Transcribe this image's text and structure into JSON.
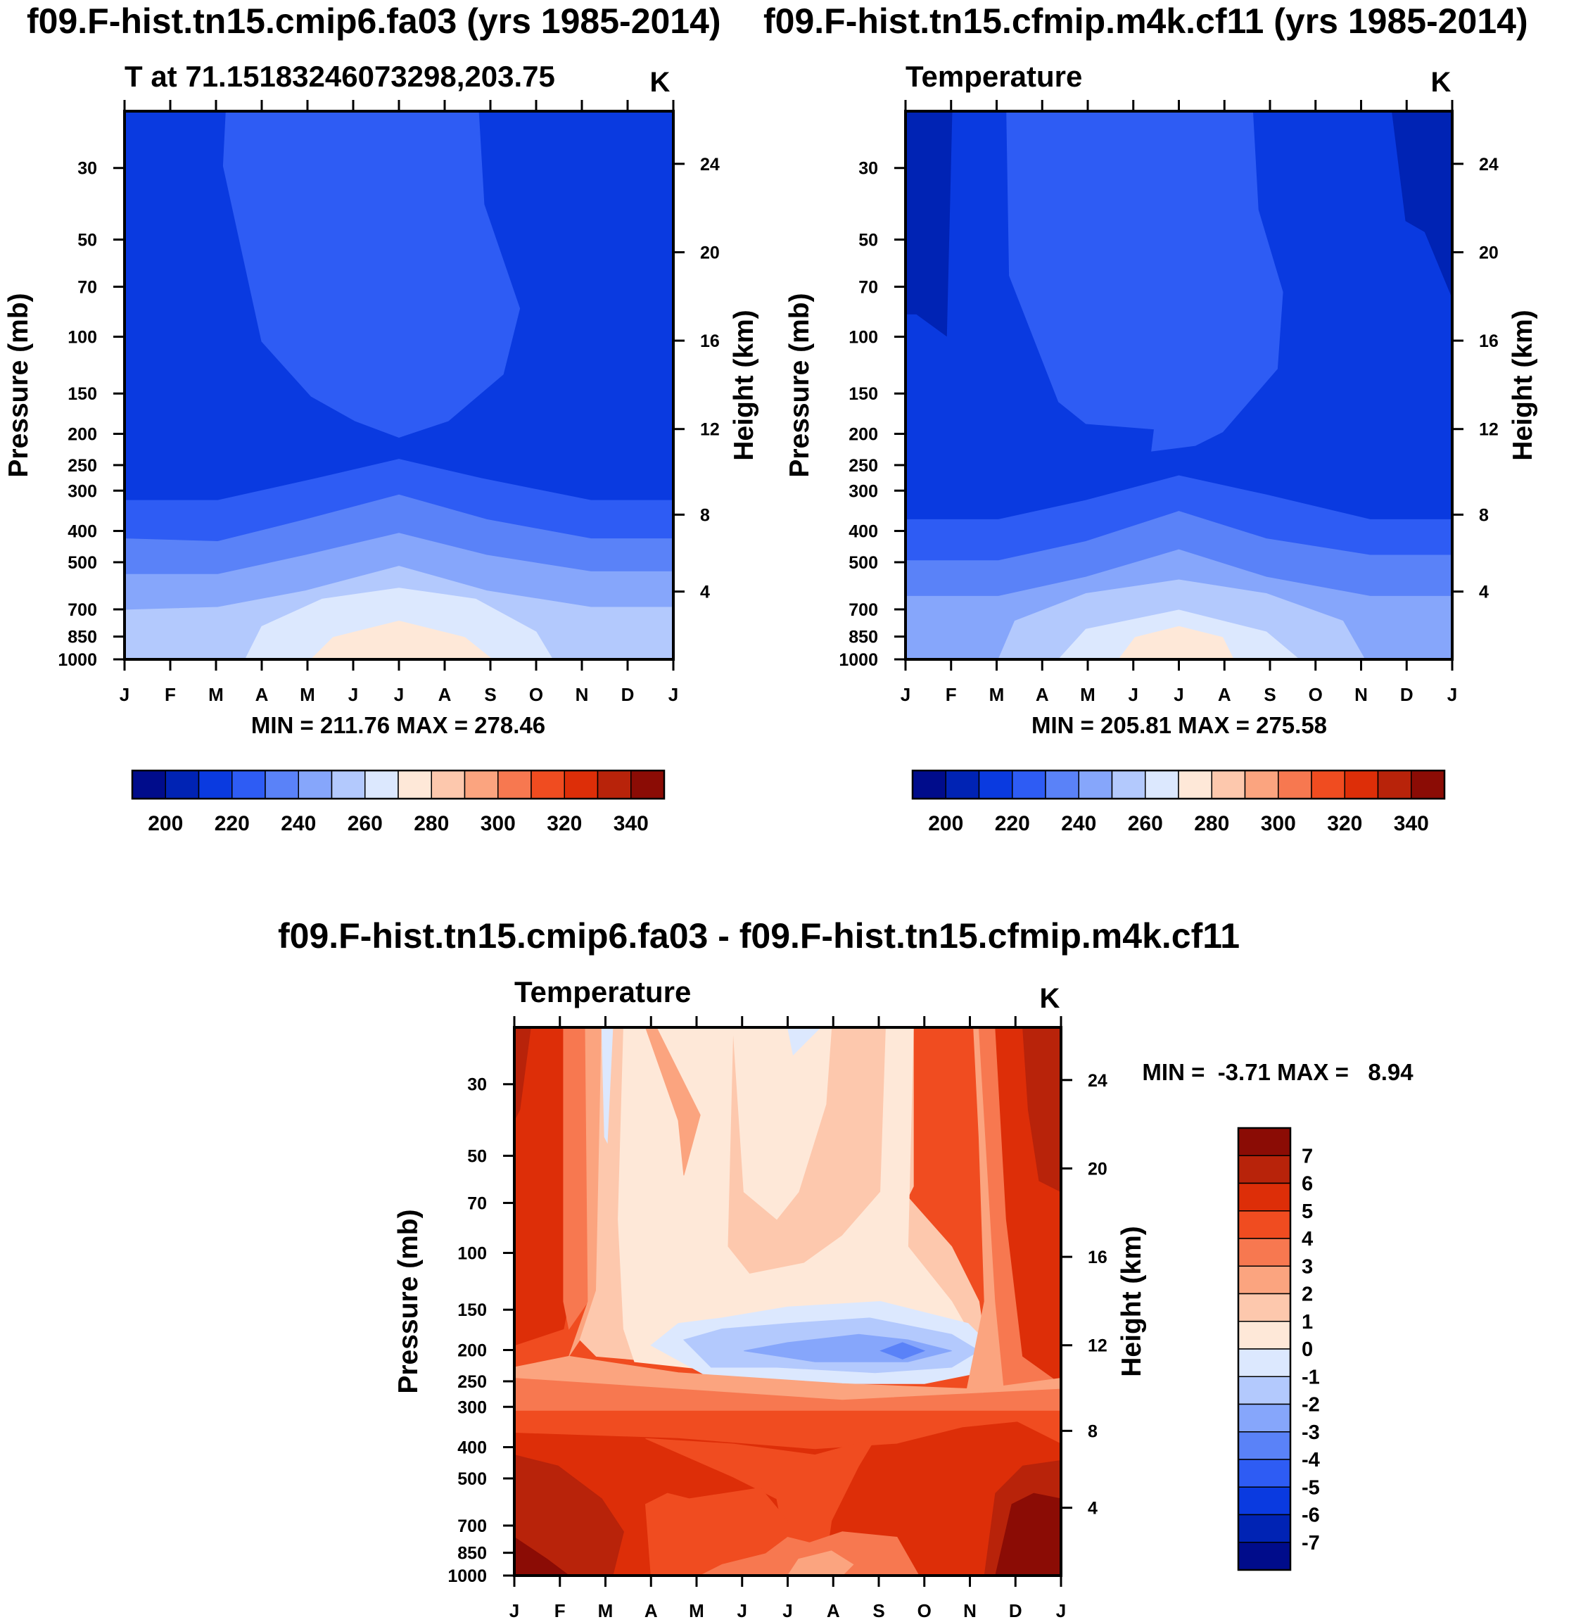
{
  "titles": {
    "left": "f09.F-hist.tn15.cmip6.fa03 (yrs 1985-2014)",
    "right": "f09.F-hist.tn15.cfmip.m4k.cf11 (yrs 1985-2014)",
    "diff": "f09.F-hist.tn15.cmip6.fa03 - f09.F-hist.tn15.cfmip.m4k.cf11"
  },
  "colors": {
    "contour_palette": [
      "#000c8b",
      "#0023b4",
      "#0a3ae0",
      "#2e5cf4",
      "#5a82f8",
      "#86a6fb",
      "#b3c9fd",
      "#dce8fe",
      "#fee8d8",
      "#fdc8ad",
      "#fba47f",
      "#f77850",
      "#f04c20",
      "#dd2e08",
      "#b8230a",
      "#8b0c05"
    ],
    "panel_fills": {
      "left": [
        "#0a3ae0",
        "#2e5cf4",
        "#5a82f8",
        "#86a6fb",
        "#b3c9fd",
        "#dce8fe",
        "#fee8d8"
      ],
      "right": [
        "#0023b4",
        "#0a3ae0",
        "#2e5cf4",
        "#5a82f8",
        "#86a6fb",
        "#b3c9fd",
        "#dce8fe",
        "#fee8d8"
      ],
      "diff": [
        "#dd2e08",
        "#f04c20",
        "#f77850",
        "#fba47f",
        "#fdc8ad",
        "#fee8d8",
        "#dce8fe",
        "#b3c9fd",
        "#86a6fb",
        "#5a82f8",
        "#b8230a",
        "#8b0c05"
      ]
    }
  },
  "chart_data": [
    {
      "id": "left",
      "type": "heatmap",
      "title": "T at 71.15183246073298,203.75",
      "units_label": "K",
      "xlabel": "",
      "ylabel": "Pressure (mb)",
      "y2label": "Height (km)",
      "x_ticks": [
        "J",
        "F",
        "M",
        "A",
        "M",
        "J",
        "J",
        "A",
        "S",
        "O",
        "N",
        "D",
        "J"
      ],
      "y_ticks": [
        30,
        50,
        70,
        100,
        150,
        200,
        250,
        300,
        400,
        500,
        700,
        850,
        1000
      ],
      "y_range": [
        20,
        1000
      ],
      "y_scale": "log-pressure",
      "height_ticks_km": [
        4,
        8,
        12,
        16,
        20,
        24
      ],
      "stats": "MIN = 211.76 MAX = 278.46",
      "min": 211.76,
      "max": 278.46,
      "levels": [
        200,
        210,
        220,
        230,
        240,
        250,
        260,
        270,
        280,
        290,
        300,
        310,
        320,
        330,
        340
      ],
      "colorbar_labels": [
        "200",
        "220",
        "240",
        "260",
        "280",
        "300",
        "320",
        "340"
      ]
    },
    {
      "id": "right",
      "type": "heatmap",
      "title": "Temperature",
      "units_label": "K",
      "xlabel": "",
      "ylabel": "Pressure (mb)",
      "y2label": "Height (km)",
      "x_ticks": [
        "J",
        "F",
        "M",
        "A",
        "M",
        "J",
        "J",
        "A",
        "S",
        "O",
        "N",
        "D",
        "J"
      ],
      "y_ticks": [
        30,
        50,
        70,
        100,
        150,
        200,
        250,
        300,
        400,
        500,
        700,
        850,
        1000
      ],
      "y_range": [
        20,
        1000
      ],
      "y_scale": "log-pressure",
      "height_ticks_km": [
        4,
        8,
        12,
        16,
        20,
        24
      ],
      "stats": "MIN = 205.81 MAX = 275.58",
      "min": 205.81,
      "max": 275.58,
      "levels": [
        200,
        210,
        220,
        230,
        240,
        250,
        260,
        270,
        280,
        290,
        300,
        310,
        320,
        330,
        340
      ],
      "colorbar_labels": [
        "200",
        "220",
        "240",
        "260",
        "280",
        "300",
        "320",
        "340"
      ]
    },
    {
      "id": "diff",
      "type": "heatmap",
      "title": "Temperature",
      "units_label": "K",
      "xlabel": "",
      "ylabel": "Pressure (mb)",
      "y2label": "Height (km)",
      "x_ticks": [
        "J",
        "F",
        "M",
        "A",
        "M",
        "J",
        "J",
        "A",
        "S",
        "O",
        "N",
        "D",
        "J"
      ],
      "y_ticks": [
        30,
        50,
        70,
        100,
        150,
        200,
        250,
        300,
        400,
        500,
        700,
        850,
        1000
      ],
      "y_range": [
        20,
        1000
      ],
      "y_scale": "log-pressure",
      "height_ticks_km": [
        4,
        8,
        12,
        16,
        20,
        24
      ],
      "stats": "MIN =  -3.71 MAX =   8.94",
      "min": -3.71,
      "max": 8.94,
      "levels": [
        -7,
        -6,
        -5,
        -4,
        -3,
        -2,
        -1,
        0,
        1,
        2,
        3,
        4,
        5,
        6,
        7
      ],
      "colorbar_labels": [
        "7",
        "6",
        "5",
        "4",
        "3",
        "2",
        "1",
        "0",
        "-1",
        "-2",
        "-3",
        "-4",
        "-5",
        "-6",
        "-7"
      ]
    }
  ]
}
